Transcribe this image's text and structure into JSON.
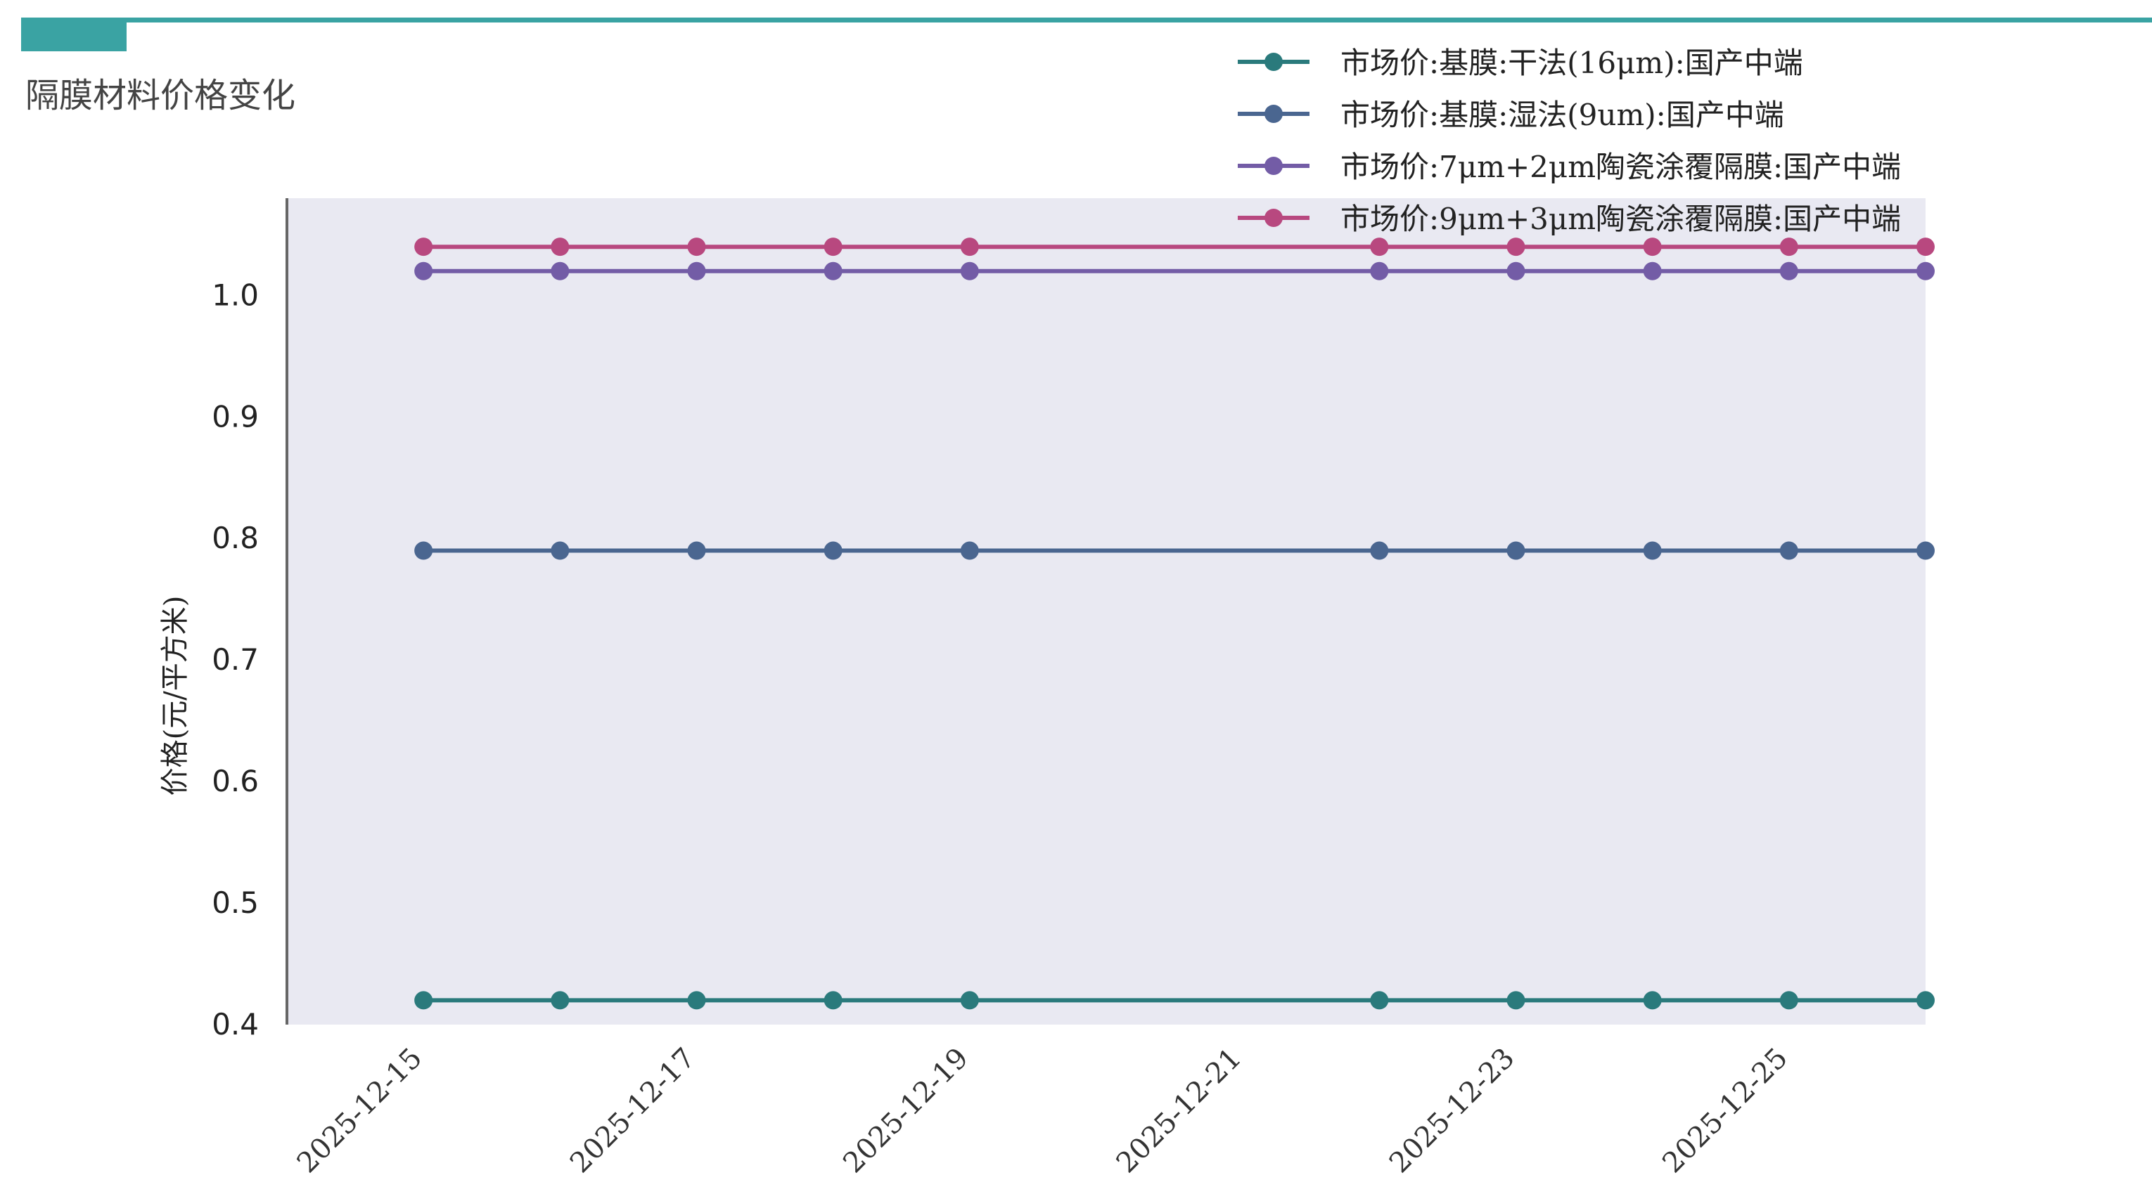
{
  "header": {
    "title": "隔膜材料价格变化",
    "accent_color": "#3aa3a3"
  },
  "chart_data": {
    "type": "line",
    "title": "",
    "xlabel": "",
    "ylabel": "价格(元/平方米)",
    "x": [
      "2025-12-15",
      "2025-12-16",
      "2025-12-17",
      "2025-12-18",
      "2025-12-19",
      "2025-12-22",
      "2025-12-23",
      "2025-12-24",
      "2025-12-25",
      "2025-12-26"
    ],
    "x_tick_labels": [
      "2025-12-15",
      "2025-12-17",
      "2025-12-19",
      "2025-12-21",
      "2025-12-23",
      "2025-12-25"
    ],
    "xlim": [
      "2025-12-14",
      "2025-12-26"
    ],
    "y_ticks": [
      0.4,
      0.5,
      0.6,
      0.7,
      0.8,
      0.9,
      1.0
    ],
    "y_tick_labels": [
      "0.4",
      "0.5",
      "0.6",
      "0.7",
      "0.8",
      "0.9",
      "1.0"
    ],
    "ylim": [
      0.4,
      1.08
    ],
    "grid": false,
    "legend_position": "top-right",
    "plot_background": "#e9e9f2",
    "series": [
      {
        "name": "市场价:基膜:干法(16μm):国产中端",
        "color": "#2a7a7c",
        "values": [
          0.42,
          0.42,
          0.42,
          0.42,
          0.42,
          0.42,
          0.42,
          0.42,
          0.42,
          0.42
        ]
      },
      {
        "name": "市场价:基膜:湿法(9um):国产中端",
        "color": "#4a6690",
        "values": [
          0.79,
          0.79,
          0.79,
          0.79,
          0.79,
          0.79,
          0.79,
          0.79,
          0.79,
          0.79
        ]
      },
      {
        "name": "市场价:7μm+2μm陶瓷涂覆隔膜:国产中端",
        "color": "#735ca6",
        "values": [
          1.02,
          1.02,
          1.02,
          1.02,
          1.02,
          1.02,
          1.02,
          1.02,
          1.02,
          1.02
        ]
      },
      {
        "name": "市场价:9μm+3μm陶瓷涂覆隔膜:国产中端",
        "color": "#b8487f",
        "values": [
          1.04,
          1.04,
          1.04,
          1.04,
          1.04,
          1.04,
          1.04,
          1.04,
          1.04,
          1.04
        ]
      }
    ]
  }
}
